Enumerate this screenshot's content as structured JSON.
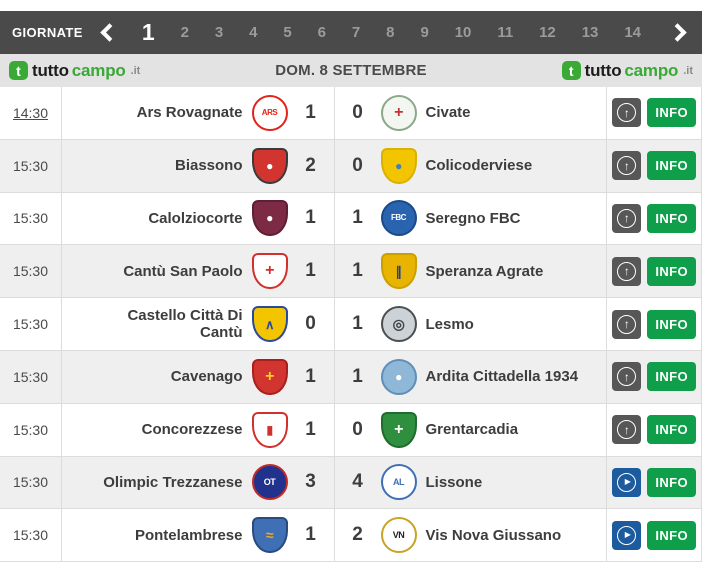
{
  "colors": {
    "navbar-bg": "#4a4a4a",
    "bar-bg": "#e3e3e3",
    "row-alt": "#efefef",
    "divider": "#dcdcdc",
    "info-green": "#0f9e4a",
    "brand-green": "#3aa935",
    "brand-dark": "#1d1d1d",
    "brand-tld": "#8a8a8a",
    "number-gray": "#9b9b9b",
    "text-dark": "#3d3d3d",
    "time-gray": "#4a4a4a",
    "date-gray": "#4a4a4a",
    "icon-gray": "#575757",
    "icon-blue": "#1c5b9d"
  },
  "icons": {
    "circle-arrow-up": "↑",
    "circle-play": "▶"
  },
  "rounds_bar": {
    "label": "GIORNATE",
    "rounds": [
      {
        "label": "1",
        "active": true
      },
      {
        "label": "2",
        "active": false
      },
      {
        "label": "3",
        "active": false
      },
      {
        "label": "4",
        "active": false
      },
      {
        "label": "5",
        "active": false
      },
      {
        "label": "6",
        "active": false
      },
      {
        "label": "7",
        "active": false
      },
      {
        "label": "8",
        "active": false
      },
      {
        "label": "9",
        "active": false
      },
      {
        "label": "10",
        "active": false
      },
      {
        "label": "11",
        "active": false
      },
      {
        "label": "12",
        "active": false
      },
      {
        "label": "13",
        "active": false
      },
      {
        "label": "14",
        "active": false
      }
    ]
  },
  "brand": {
    "icon_letter": "t",
    "part1": "tutto",
    "part2": "campo",
    "part3": ".it"
  },
  "date_bar": {
    "date": "DOM. 8 SETTEMBRE"
  },
  "matches": [
    {
      "time": "14:30",
      "time_underlined": true,
      "home": {
        "name": "Ars Rovagnate",
        "logo": {
          "shape": "circle",
          "bg": "#ffffff",
          "border": "#e2231a",
          "glyph": "ARS",
          "glyph_color": "#e2231a",
          "glyph_size": "8px"
        }
      },
      "home_score": "1",
      "away_score": "0",
      "away": {
        "name": "Civate",
        "logo": {
          "shape": "circle",
          "bg": "#f3f6f1",
          "border": "#8aa88a",
          "glyph": "+",
          "glyph_color": "#c93038",
          "glyph_size": "16px"
        }
      },
      "action": {
        "kind": "arrow",
        "color": "#575757"
      },
      "info_label": "INFO"
    },
    {
      "time": "15:30",
      "time_underlined": false,
      "home": {
        "name": "Biassono",
        "logo": {
          "shape": "shield",
          "bg": "#d23430",
          "border": "#3a3a3a",
          "glyph": "●",
          "glyph_color": "#ffffff",
          "glyph_size": "12px"
        }
      },
      "home_score": "2",
      "away_score": "0",
      "away": {
        "name": "Colicoderviese",
        "logo": {
          "shape": "shield",
          "bg": "#f2c500",
          "border": "#d9b200",
          "glyph": "●",
          "glyph_color": "#3f7fc1",
          "glyph_size": "12px"
        }
      },
      "action": {
        "kind": "arrow",
        "color": "#575757"
      },
      "info_label": "INFO"
    },
    {
      "time": "15:30",
      "time_underlined": false,
      "home": {
        "name": "Calolziocorte",
        "logo": {
          "shape": "shield",
          "bg": "#7d2a45",
          "border": "#5e1f34",
          "glyph": "●",
          "glyph_color": "#ffffff",
          "glyph_size": "12px"
        }
      },
      "home_score": "1",
      "away_score": "1",
      "away": {
        "name": "Seregno FBC",
        "logo": {
          "shape": "circle",
          "bg": "#2a63ae",
          "border": "#194a8c",
          "glyph": "FBC",
          "glyph_color": "#ffffff",
          "glyph_size": "8px"
        }
      },
      "action": {
        "kind": "arrow",
        "color": "#575757"
      },
      "info_label": "INFO"
    },
    {
      "time": "15:30",
      "time_underlined": false,
      "home": {
        "name": "Cantù San Paolo",
        "logo": {
          "shape": "shield",
          "bg": "#ffffff",
          "border": "#d2302c",
          "glyph": "+",
          "glyph_color": "#d2302c",
          "glyph_size": "16px"
        }
      },
      "home_score": "1",
      "away_score": "1",
      "away": {
        "name": "Speranza Agrate",
        "logo": {
          "shape": "shield",
          "bg": "#e8b400",
          "border": "#caa000",
          "glyph": "∥",
          "glyph_color": "#24418e",
          "glyph_size": "13px"
        }
      },
      "action": {
        "kind": "arrow",
        "color": "#575757"
      },
      "info_label": "INFO"
    },
    {
      "time": "15:30",
      "time_underlined": false,
      "home": {
        "name": "Castello Città Di Cantù",
        "logo": {
          "shape": "shield",
          "bg": "#f2c500",
          "border": "#2a4a9a",
          "glyph": "∧",
          "glyph_color": "#2a4a9a",
          "glyph_size": "13px"
        }
      },
      "home_score": "0",
      "away_score": "1",
      "away": {
        "name": "Lesmo",
        "logo": {
          "shape": "circle",
          "bg": "#cdd2d6",
          "border": "#4a4f54",
          "glyph": "◎",
          "glyph_color": "#3f444a",
          "glyph_size": "14px"
        }
      },
      "action": {
        "kind": "arrow",
        "color": "#575757"
      },
      "info_label": "INFO"
    },
    {
      "time": "15:30",
      "time_underlined": false,
      "home": {
        "name": "Cavenago",
        "logo": {
          "shape": "shield",
          "bg": "#d23430",
          "border": "#a81f1c",
          "glyph": "+",
          "glyph_color": "#f5d020",
          "glyph_size": "16px"
        }
      },
      "home_score": "1",
      "away_score": "1",
      "away": {
        "name": "Ardita Cittadella 1934",
        "logo": {
          "shape": "circle",
          "bg": "#8fb8d8",
          "border": "#5f8fb8",
          "glyph": "●",
          "glyph_color": "#ffffff",
          "glyph_size": "12px"
        }
      },
      "action": {
        "kind": "arrow",
        "color": "#575757"
      },
      "info_label": "INFO"
    },
    {
      "time": "15:30",
      "time_underlined": false,
      "home": {
        "name": "Concorezzese",
        "logo": {
          "shape": "shield",
          "bg": "#ffffff",
          "border": "#d2302c",
          "glyph": "▮",
          "glyph_color": "#d2302c",
          "glyph_size": "12px"
        }
      },
      "home_score": "1",
      "away_score": "0",
      "away": {
        "name": "Grentarcadia",
        "logo": {
          "shape": "shield",
          "bg": "#2e8f3f",
          "border": "#206b2e",
          "glyph": "+",
          "glyph_color": "#ffffff",
          "glyph_size": "16px"
        }
      },
      "action": {
        "kind": "arrow",
        "color": "#575757"
      },
      "info_label": "INFO"
    },
    {
      "time": "15:30",
      "time_underlined": false,
      "home": {
        "name": "Olimpic Trezzanese",
        "logo": {
          "shape": "circle",
          "bg": "#20328c",
          "border": "#c22a28",
          "glyph": "OT",
          "glyph_color": "#ffffff",
          "glyph_size": "9px"
        }
      },
      "home_score": "3",
      "away_score": "4",
      "away": {
        "name": "Lissone",
        "logo": {
          "shape": "circle",
          "bg": "#ffffff",
          "border": "#3f6fb5",
          "glyph": "AL",
          "glyph_color": "#3f6fb5",
          "glyph_size": "9px"
        }
      },
      "action": {
        "kind": "play",
        "color": "#1c5b9d"
      },
      "info_label": "INFO"
    },
    {
      "time": "15:30",
      "time_underlined": false,
      "home": {
        "name": "Pontelambrese",
        "logo": {
          "shape": "shield",
          "bg": "#3f6fb5",
          "border": "#2a4a80",
          "glyph": "≈",
          "glyph_color": "#f5a623",
          "glyph_size": "14px"
        }
      },
      "home_score": "1",
      "away_score": "2",
      "away": {
        "name": "Vis Nova Giussano",
        "logo": {
          "shape": "circle",
          "bg": "#ffffff",
          "border": "#c9a227",
          "glyph": "VN",
          "glyph_color": "#222222",
          "glyph_size": "9px"
        }
      },
      "action": {
        "kind": "play",
        "color": "#1c5b9d"
      },
      "info_label": "INFO"
    }
  ]
}
